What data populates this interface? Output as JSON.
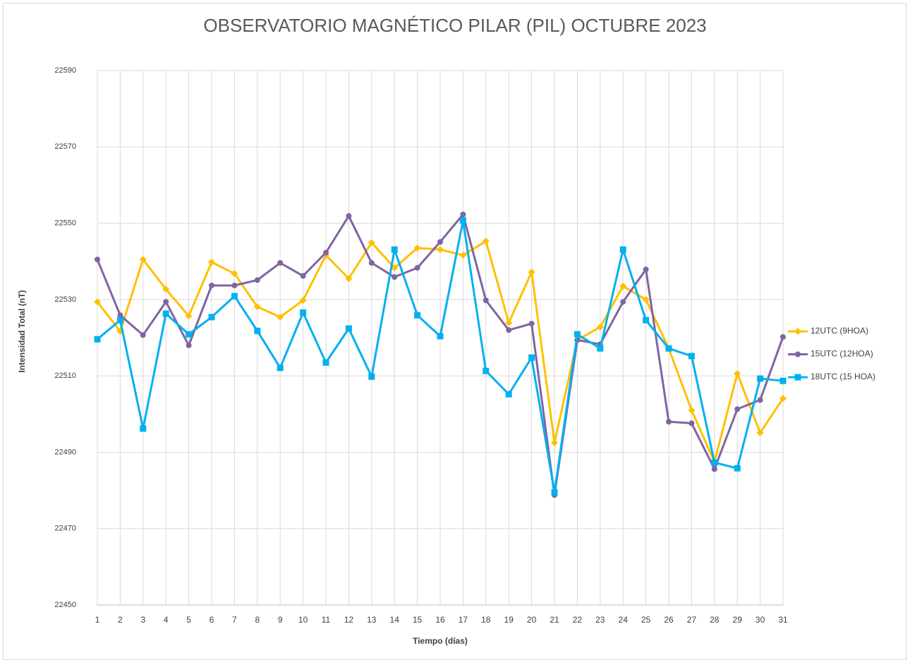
{
  "chart_data": {
    "type": "line",
    "title": "OBSERVATORIO MAGNÉTICO PILAR (PIL) OCTUBRE 2023",
    "x_label": "Tiempo (días)",
    "y_label": "Intensidad Total (nT)",
    "categories": [
      "1",
      "2",
      "3",
      "4",
      "5",
      "6",
      "7",
      "8",
      "9",
      "10",
      "11",
      "12",
      "13",
      "14",
      "15",
      "16",
      "17",
      "18",
      "19",
      "20",
      "21",
      "22",
      "23",
      "24",
      "25",
      "26",
      "27",
      "28",
      "29",
      "30",
      "31"
    ],
    "series": [
      {
        "name": "12UTC (9HOA)",
        "color": "#FFC000",
        "marker": "diamond",
        "values": [
          22529.4,
          22521.7,
          22540.5,
          22532.7,
          22525.7,
          22539.8,
          22536.8,
          22528.1,
          22525.4,
          22529.8,
          22541.6,
          22535.5,
          22544.9,
          22538.3,
          22543.5,
          22543.1,
          22541.6,
          22545.3,
          22523.9,
          22537.2,
          22492.5,
          22519.4,
          22522.8,
          22533.5,
          22530.0,
          22517.2,
          22501.0,
          22487.5,
          22510.6,
          22495.1,
          22504.1
        ]
      },
      {
        "name": "15UTC (12HOA)",
        "color": "#8064A2",
        "marker": "circle",
        "values": [
          22540.5,
          22525.9,
          22520.7,
          22529.4,
          22518.0,
          22533.7,
          22533.7,
          22535.1,
          22539.6,
          22536.2,
          22542.3,
          22551.9,
          22539.6,
          22535.9,
          22538.3,
          22545.1,
          22552.3,
          22529.8,
          22522.0,
          22523.7,
          22478.8,
          22519.4,
          22518.3,
          22529.4,
          22537.9,
          22498.0,
          22497.6,
          22485.6,
          22501.3,
          22503.7,
          22520.2
        ]
      },
      {
        "name": "18UTC (15 HOA)",
        "color": "#00B0F0",
        "marker": "square",
        "values": [
          22519.6,
          22524.6,
          22496.2,
          22526.3,
          22520.9,
          22525.4,
          22530.9,
          22521.8,
          22512.1,
          22526.6,
          22513.5,
          22522.4,
          22509.8,
          22543.1,
          22525.9,
          22520.4,
          22550.7,
          22511.3,
          22505.2,
          22514.8,
          22479.5,
          22520.9,
          22517.2,
          22543.1,
          22524.6,
          22517.2,
          22515.2,
          22487.3,
          22485.8,
          22509.3,
          22508.7
        ]
      }
    ],
    "ylim": [
      22450,
      22590
    ],
    "yticks": [
      22450,
      22470,
      22490,
      22510,
      22530,
      22550,
      22570,
      22590
    ],
    "grid": true,
    "legend": "right"
  }
}
